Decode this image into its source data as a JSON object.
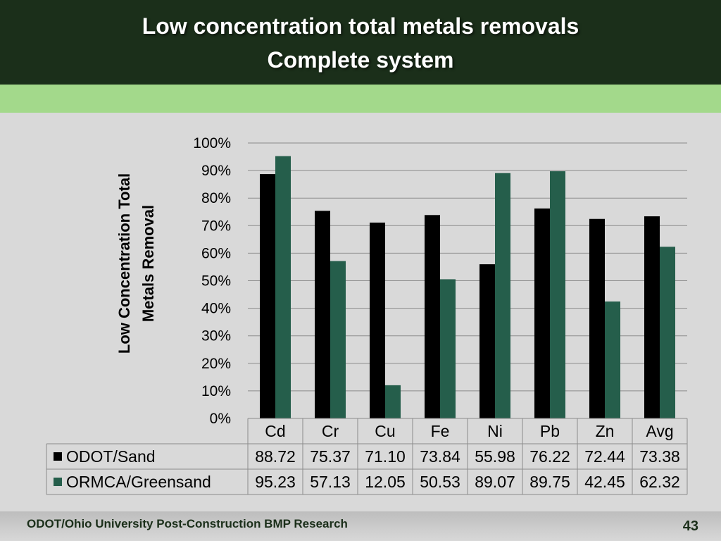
{
  "slide": {
    "title_line1": "Low concentration total metals removals",
    "title_line2": "Complete system",
    "footer": "ODOT/Ohio University Post-Construction BMP Research",
    "page_number": "43"
  },
  "colors": {
    "header_bg": "#1b2f1a",
    "band": "#a3d98b",
    "background": "#d9d9d9",
    "series_odot": "#000000",
    "series_ormca": "#255e4b"
  },
  "chart_data": {
    "type": "bar",
    "ylabel_line1": "Low Concentration Total",
    "ylabel_line2": "Metals Removal",
    "ylim": [
      0,
      100
    ],
    "y_ticks": [
      "0%",
      "10%",
      "20%",
      "30%",
      "40%",
      "50%",
      "60%",
      "70%",
      "80%",
      "90%",
      "100%"
    ],
    "grid": true,
    "legend": "data-table",
    "categories": [
      "Cd",
      "Cr",
      "Cu",
      "Fe",
      "Ni",
      "Pb",
      "Zn",
      "Avg"
    ],
    "series": [
      {
        "name": "ODOT/Sand",
        "color": "#000000",
        "values": [
          88.72,
          75.37,
          71.1,
          73.84,
          55.98,
          76.22,
          72.44,
          73.38
        ],
        "labels": [
          "88.72",
          "75.37",
          "71.10",
          "73.84",
          "55.98",
          "76.22",
          "72.44",
          "73.38"
        ]
      },
      {
        "name": "ORMCA/Greensand",
        "color": "#255e4b",
        "values": [
          95.23,
          57.13,
          12.05,
          50.53,
          89.07,
          89.75,
          42.45,
          62.32
        ],
        "labels": [
          "95.23",
          "57.13",
          "12.05",
          "50.53",
          "89.07",
          "89.75",
          "42.45",
          "62.32"
        ]
      }
    ]
  }
}
